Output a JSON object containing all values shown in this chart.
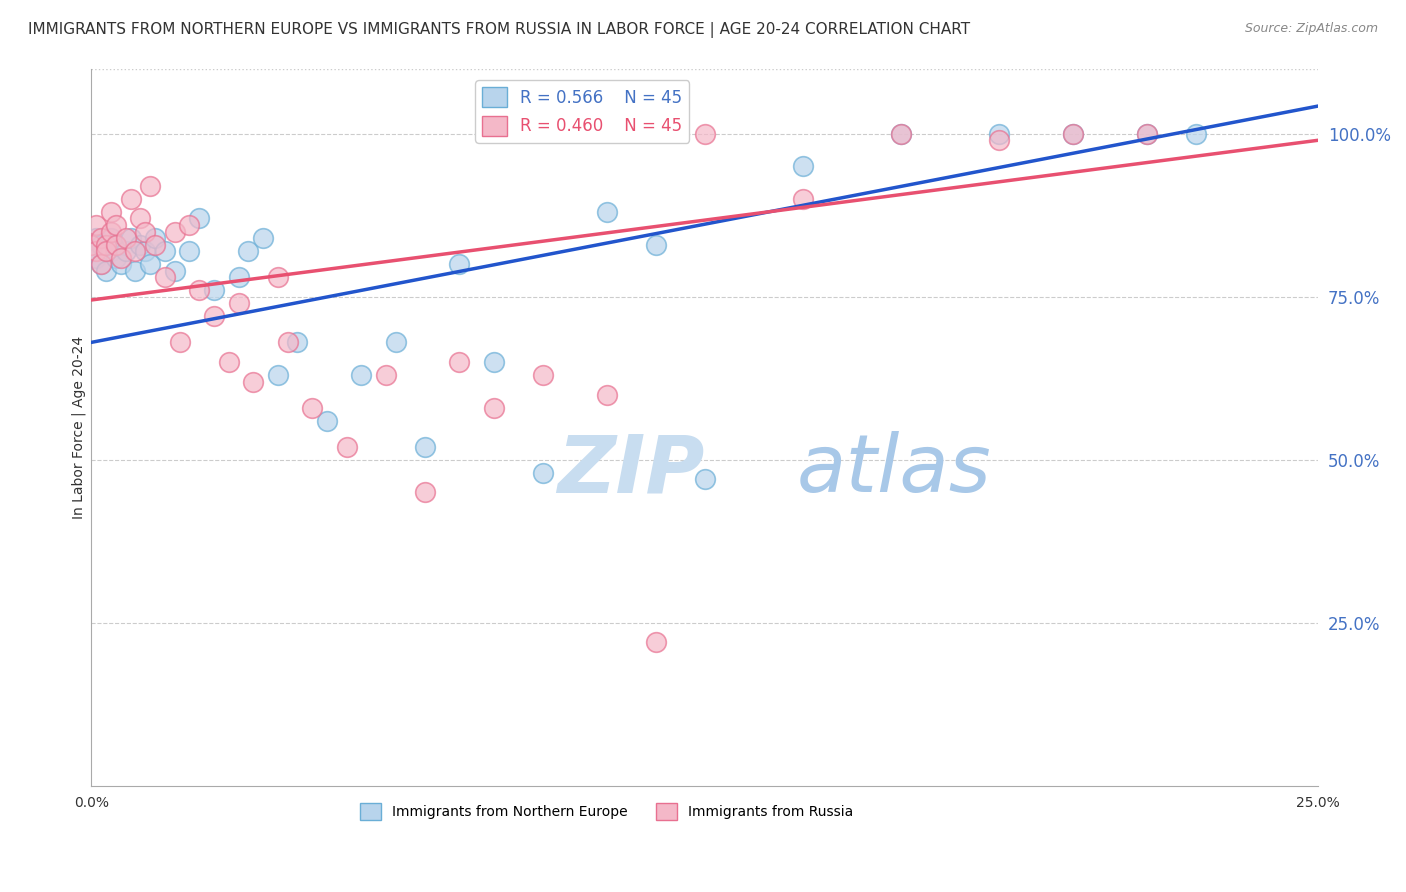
{
  "title": "IMMIGRANTS FROM NORTHERN EUROPE VS IMMIGRANTS FROM RUSSIA IN LABOR FORCE | AGE 20-24 CORRELATION CHART",
  "source": "Source: ZipAtlas.com",
  "ylabel": "In Labor Force | Age 20-24",
  "series": [
    {
      "name": "Immigrants from Northern Europe",
      "color_fill": "#b8d4ec",
      "color_edge": "#6aaed6",
      "R": 0.566,
      "N": 45,
      "x": [
        0.0,
        0.001,
        0.001,
        0.002,
        0.002,
        0.003,
        0.003,
        0.004,
        0.004,
        0.005,
        0.005,
        0.006,
        0.007,
        0.008,
        0.009,
        0.01,
        0.011,
        0.012,
        0.013,
        0.015,
        0.017,
        0.02,
        0.022,
        0.025,
        0.03,
        0.032,
        0.035,
        0.038,
        0.042,
        0.048,
        0.055,
        0.062,
        0.068,
        0.075,
        0.082,
        0.092,
        0.105,
        0.115,
        0.125,
        0.145,
        0.165,
        0.185,
        0.2,
        0.215,
        0.225
      ],
      "y": [
        0.82,
        0.84,
        0.81,
        0.83,
        0.8,
        0.82,
        0.79,
        0.84,
        0.82,
        0.81,
        0.83,
        0.8,
        0.82,
        0.84,
        0.79,
        0.83,
        0.82,
        0.8,
        0.84,
        0.82,
        0.79,
        0.82,
        0.87,
        0.76,
        0.78,
        0.82,
        0.84,
        0.63,
        0.68,
        0.56,
        0.63,
        0.68,
        0.52,
        0.8,
        0.65,
        0.48,
        0.88,
        0.83,
        0.47,
        0.95,
        1.0,
        1.0,
        1.0,
        1.0,
        1.0
      ]
    },
    {
      "name": "Immigrants from Russia",
      "color_fill": "#f4b8c8",
      "color_edge": "#e87090",
      "R": 0.46,
      "N": 45,
      "x": [
        0.0,
        0.001,
        0.001,
        0.002,
        0.002,
        0.003,
        0.003,
        0.004,
        0.004,
        0.005,
        0.005,
        0.006,
        0.007,
        0.008,
        0.009,
        0.01,
        0.011,
        0.012,
        0.013,
        0.015,
        0.017,
        0.018,
        0.02,
        0.022,
        0.025,
        0.028,
        0.03,
        0.033,
        0.038,
        0.04,
        0.045,
        0.052,
        0.06,
        0.068,
        0.075,
        0.082,
        0.092,
        0.105,
        0.115,
        0.125,
        0.145,
        0.165,
        0.185,
        0.2,
        0.215
      ],
      "y": [
        0.83,
        0.86,
        0.82,
        0.84,
        0.8,
        0.83,
        0.82,
        0.88,
        0.85,
        0.83,
        0.86,
        0.81,
        0.84,
        0.9,
        0.82,
        0.87,
        0.85,
        0.92,
        0.83,
        0.78,
        0.85,
        0.68,
        0.86,
        0.76,
        0.72,
        0.65,
        0.74,
        0.62,
        0.78,
        0.68,
        0.58,
        0.52,
        0.63,
        0.45,
        0.65,
        0.58,
        0.63,
        0.6,
        0.22,
        1.0,
        0.9,
        1.0,
        0.99,
        1.0,
        1.0
      ]
    }
  ],
  "blue_line_intercept": 0.68,
  "blue_line_slope": 1.45,
  "pink_line_intercept": 0.745,
  "pink_line_slope": 0.98,
  "xlim": [
    0,
    0.25
  ],
  "ylim": [
    0,
    1.1
  ],
  "yticks_right": [
    0.25,
    0.5,
    0.75,
    1.0
  ],
  "ytick_labels_right": [
    "25.0%",
    "50.0%",
    "75.0%",
    "100.0%"
  ],
  "grid_color": "#cccccc",
  "background_color": "#ffffff",
  "title_fontsize": 11,
  "source_fontsize": 9,
  "label_fontsize": 10,
  "legend_fontsize": 12,
  "watermark": "ZIPatlas",
  "watermark_color": "#d0e4f7",
  "watermark_fontsize": 52
}
